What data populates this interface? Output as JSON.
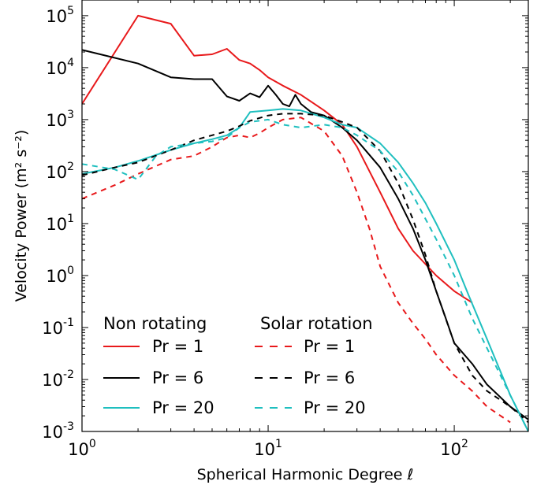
{
  "chart_data": {
    "type": "line",
    "title": "",
    "xlabel": "Spherical Harmonic Degree ℓ",
    "ylabel": "Velocity Power (m² s⁻²)",
    "xscale": "log",
    "yscale": "log",
    "xlim": [
      1,
      250
    ],
    "ylim": [
      0.001,
      200000
    ],
    "grid": false,
    "x_ticks": [
      {
        "value": 1,
        "base": "10",
        "exp": "0"
      },
      {
        "value": 10,
        "base": "10",
        "exp": "1"
      },
      {
        "value": 100,
        "base": "10",
        "exp": "2"
      }
    ],
    "y_ticks": [
      {
        "value": 0.001,
        "base": "10",
        "exp": "-3"
      },
      {
        "value": 0.01,
        "base": "10",
        "exp": "-2"
      },
      {
        "value": 0.1,
        "base": "10",
        "exp": "-1"
      },
      {
        "value": 1,
        "base": "10",
        "exp": "0"
      },
      {
        "value": 10,
        "base": "10",
        "exp": "1"
      },
      {
        "value": 100,
        "base": "10",
        "exp": "2"
      },
      {
        "value": 1000,
        "base": "10",
        "exp": "3"
      },
      {
        "value": 10000,
        "base": "10",
        "exp": "4"
      },
      {
        "value": 100000,
        "base": "10",
        "exp": "5"
      }
    ],
    "legend": {
      "placement": "lower-left",
      "groups": [
        {
          "title": "Non rotating",
          "entries": [
            "Pr = 1",
            "Pr = 6",
            "Pr = 20"
          ]
        },
        {
          "title": "Solar rotation",
          "entries": [
            "Pr = 1",
            "Pr = 6",
            "Pr = 20"
          ]
        }
      ]
    },
    "series": [
      {
        "name": "Pr = 1",
        "group": "Non rotating",
        "color": "#e8191b",
        "dash": "solid",
        "x": [
          1,
          2,
          3,
          4,
          5,
          6,
          7,
          8,
          9,
          10,
          12,
          15,
          20,
          25,
          30,
          40,
          50,
          60,
          80,
          100,
          125
        ],
        "y": [
          2000,
          100000,
          70000,
          17000,
          18000,
          23000,
          14000,
          12000,
          9000,
          6500,
          4500,
          3000,
          1500,
          800,
          300,
          40,
          8,
          3,
          1,
          0.5,
          0.3
        ]
      },
      {
        "name": "Pr = 6",
        "group": "Non rotating",
        "color": "#000000",
        "dash": "solid",
        "x": [
          1,
          2,
          3,
          4,
          5,
          6,
          7,
          8,
          9,
          10,
          11,
          12,
          13,
          14,
          15,
          17,
          20,
          25,
          30,
          40,
          50,
          60,
          70,
          80,
          90,
          100,
          125,
          150,
          200,
          250
        ],
        "y": [
          22000,
          12000,
          6500,
          6000,
          6000,
          2800,
          2300,
          3200,
          2700,
          4500,
          3000,
          2000,
          1800,
          3000,
          2000,
          1400,
          1200,
          700,
          400,
          120,
          30,
          8,
          2,
          0.5,
          0.15,
          0.05,
          0.02,
          0.008,
          0.003,
          0.0017
        ]
      },
      {
        "name": "Pr = 20",
        "group": "Non rotating",
        "color": "#1fbfbf",
        "dash": "solid",
        "x": [
          1,
          1.5,
          2,
          3,
          4,
          5,
          6,
          7,
          8,
          10,
          12,
          15,
          20,
          25,
          30,
          40,
          50,
          60,
          70,
          80,
          100,
          120,
          150,
          200,
          250
        ],
        "y": [
          90,
          120,
          160,
          260,
          350,
          420,
          500,
          700,
          1400,
          1500,
          1600,
          1500,
          1100,
          800,
          700,
          350,
          150,
          60,
          25,
          10,
          2,
          0.4,
          0.06,
          0.005,
          0.001
        ]
      },
      {
        "name": "Pr = 1",
        "group": "Solar rotation",
        "color": "#e8191b",
        "dash": "dashed",
        "x": [
          1,
          1.5,
          2,
          3,
          4,
          5,
          6,
          7,
          8,
          9,
          10,
          12,
          15,
          20,
          25,
          30,
          35,
          40,
          50,
          60,
          70,
          80,
          100,
          125,
          150,
          200
        ],
        "y": [
          30,
          55,
          90,
          170,
          200,
          300,
          450,
          500,
          450,
          550,
          700,
          1000,
          1100,
          600,
          200,
          40,
          8,
          1.5,
          0.3,
          0.12,
          0.06,
          0.03,
          0.012,
          0.006,
          0.003,
          0.0015
        ]
      },
      {
        "name": "Pr = 6",
        "group": "Solar rotation",
        "color": "#000000",
        "dash": "dashed",
        "x": [
          1,
          1.5,
          2,
          3,
          4,
          5,
          6,
          7,
          8,
          10,
          12,
          15,
          20,
          25,
          30,
          40,
          50,
          60,
          70,
          80,
          100,
          125,
          150,
          200,
          250
        ],
        "y": [
          85,
          120,
          150,
          260,
          400,
          500,
          600,
          750,
          950,
          1200,
          1300,
          1300,
          1200,
          900,
          700,
          250,
          60,
          12,
          2.5,
          0.5,
          0.05,
          0.012,
          0.006,
          0.003,
          0.0015
        ]
      },
      {
        "name": "Pr = 20",
        "group": "Solar rotation",
        "color": "#1fbfbf",
        "dash": "dashed",
        "x": [
          1,
          1.5,
          2,
          2.5,
          3,
          4,
          5,
          6,
          7,
          8,
          10,
          12,
          15,
          20,
          25,
          30,
          40,
          50,
          60,
          80,
          100,
          125,
          150,
          200,
          250
        ],
        "y": [
          140,
          110,
          70,
          200,
          300,
          350,
          380,
          450,
          700,
          900,
          1000,
          800,
          700,
          800,
          700,
          500,
          250,
          100,
          35,
          5,
          1,
          0.15,
          0.04,
          0.005,
          0.001
        ]
      }
    ]
  }
}
